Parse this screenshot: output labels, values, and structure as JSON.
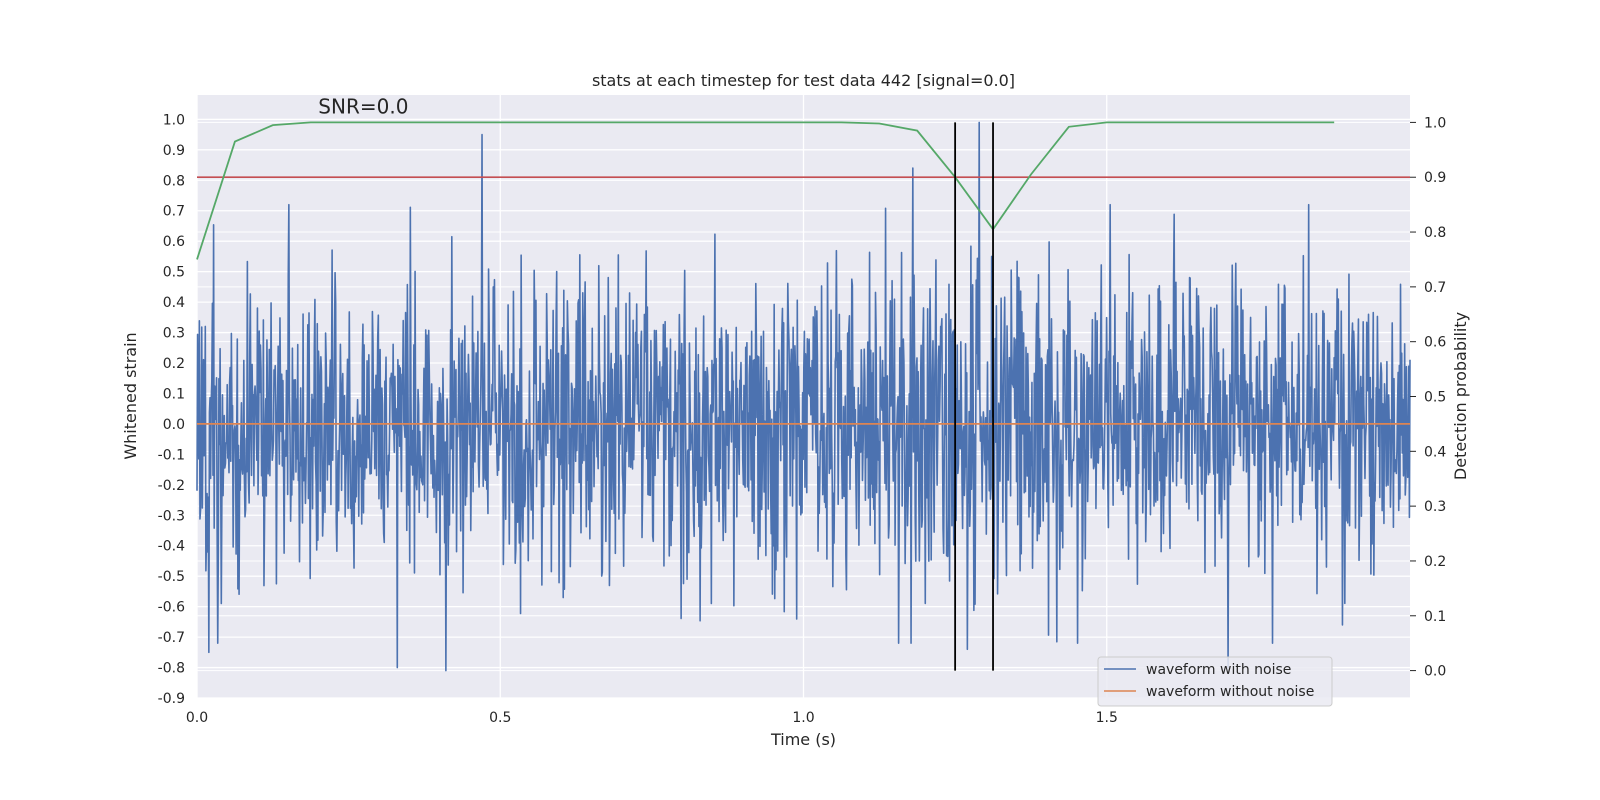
{
  "chart_data": {
    "type": "line",
    "title": "stats at each timestep for test data 442 [signal=0.0]",
    "xlabel": "Time (s)",
    "ylabel_left": "Whitened strain",
    "ylabel_right": "Detection probability",
    "annotation": "SNR=0.0",
    "xlim": [
      0.0,
      2.0
    ],
    "ylim_left": [
      -0.9,
      1.08
    ],
    "ylim_right": [
      -0.05,
      1.05
    ],
    "x_ticks": [
      "0.0",
      "0.5",
      "1.0",
      "1.5"
    ],
    "x_tick_values": [
      0.0,
      0.5,
      1.0,
      1.5
    ],
    "y_ticks_left": [
      "1.0",
      "0.9",
      "0.8",
      "0.7",
      "0.6",
      "0.5",
      "0.4",
      "0.3",
      "0.2",
      "0.1",
      "0.0",
      "-0.1",
      "-0.2",
      "-0.3",
      "-0.4",
      "-0.5",
      "-0.6",
      "-0.7",
      "-0.8",
      "-0.9"
    ],
    "y_tick_values_left": [
      1.0,
      0.9,
      0.8,
      0.7,
      0.6,
      0.5,
      0.4,
      0.3,
      0.2,
      0.1,
      0.0,
      -0.1,
      -0.2,
      -0.3,
      -0.4,
      -0.5,
      -0.6,
      -0.7,
      -0.8,
      -0.9
    ],
    "y_ticks_right": [
      "1.0",
      "0.9",
      "0.8",
      "0.7",
      "0.6",
      "0.5",
      "0.4",
      "0.3",
      "0.2",
      "0.1",
      "0.0"
    ],
    "y_tick_values_right": [
      1.0,
      0.9,
      0.8,
      0.7,
      0.6,
      0.5,
      0.4,
      0.3,
      0.2,
      0.1,
      0.0
    ],
    "grid": true,
    "legend_position": "lower-right",
    "legend": [
      {
        "name": "waveform with noise",
        "color": "#4c72b0"
      },
      {
        "name": "waveform without noise",
        "color": "#dd8452"
      }
    ],
    "series": [
      {
        "name": "waveform with noise",
        "axis": "left",
        "color": "#4c72b0",
        "kind": "noise",
        "x_range": [
          0.0,
          2.0
        ],
        "n_points": 2048,
        "std": 0.24,
        "peaks": [
          {
            "x": 0.47,
            "y": 0.95
          },
          {
            "x": 1.18,
            "y": 0.84
          },
          {
            "x": 1.29,
            "y": 0.99
          },
          {
            "x": 1.31,
            "y": 0.55
          },
          {
            "x": 0.41,
            "y": -0.81
          },
          {
            "x": 0.33,
            "y": -0.8
          },
          {
            "x": 1.7,
            "y": -0.8
          },
          {
            "x": 1.27,
            "y": -0.74
          },
          {
            "x": 0.02,
            "y": -0.75
          }
        ]
      },
      {
        "name": "waveform without noise",
        "axis": "left",
        "color": "#dd8452",
        "x": [
          0.0,
          2.0
        ],
        "y": [
          0.0,
          0.0
        ]
      },
      {
        "name": "detection probability",
        "axis": "right",
        "color": "#55a868",
        "x": [
          0.0,
          0.0625,
          0.125,
          0.1875,
          1.0,
          1.0625,
          1.125,
          1.1875,
          1.25,
          1.3125,
          1.375,
          1.4375,
          1.5,
          1.5625,
          1.875
        ],
        "y": [
          0.75,
          0.965,
          0.995,
          1.0,
          1.0,
          1.0,
          0.998,
          0.985,
          0.9,
          0.805,
          0.905,
          0.992,
          1.0,
          1.0,
          1.0
        ]
      },
      {
        "name": "threshold",
        "axis": "right",
        "color": "#c44e52",
        "x": [
          0.0,
          2.0
        ],
        "y": [
          0.9,
          0.9
        ]
      }
    ],
    "vlines": [
      {
        "x": 1.25,
        "y_range": [
          0.0,
          1.0
        ],
        "axis": "right",
        "color": "#000000"
      },
      {
        "x": 1.3125,
        "y_range": [
          0.0,
          1.0
        ],
        "axis": "right",
        "color": "#000000"
      }
    ],
    "annotation_position": {
      "x": 0.2,
      "y": 1.02
    }
  }
}
